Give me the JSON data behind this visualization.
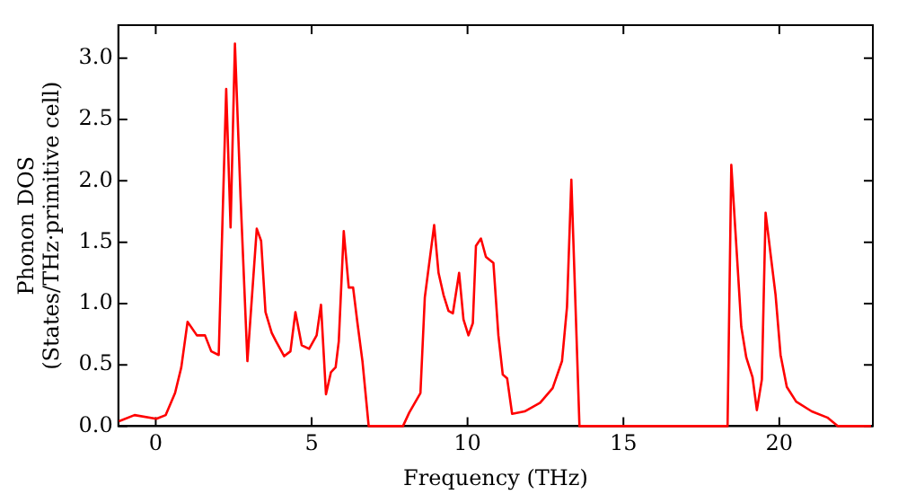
{
  "chart_data": {
    "type": "line",
    "xlabel": "Frequency (THz)",
    "ylabel": "Phonon DOS\n(States/THz·primitive cell)",
    "xlim": [
      -1.2,
      23
    ],
    "ylim": [
      0,
      3.27
    ],
    "xticks": [
      0,
      5,
      10,
      15,
      20
    ],
    "yticks": [
      {
        "value": 0,
        "label": "0.0"
      },
      {
        "value": 0.5,
        "label": "0.5"
      },
      {
        "value": 1,
        "label": "1.0"
      },
      {
        "value": 1.5,
        "label": "1.5"
      },
      {
        "value": 2,
        "label": "2.0"
      },
      {
        "value": 2.5,
        "label": "2.5"
      },
      {
        "value": 3,
        "label": "3.0"
      }
    ],
    "grid": false,
    "legend": false,
    "marker": "none",
    "line_style": "solid",
    "series": [
      {
        "color": "#ff0000",
        "x": [
          -1.18,
          -0.68,
          0.02,
          0.32,
          0.62,
          0.82,
          1.02,
          1.32,
          1.58,
          1.78,
          2.02,
          2.26,
          2.4,
          2.54,
          2.72,
          2.94,
          3.24,
          3.38,
          3.52,
          3.72,
          3.86,
          4.12,
          4.32,
          4.48,
          4.68,
          4.92,
          5.16,
          5.3,
          5.46,
          5.62,
          5.77,
          5.87,
          6.03,
          6.19,
          6.33,
          6.47,
          6.63,
          6.83,
          7.93,
          8.13,
          8.49,
          8.63,
          8.93,
          9.07,
          9.23,
          9.39,
          9.53,
          9.73,
          9.87,
          10.03,
          10.17,
          10.27,
          10.43,
          10.59,
          10.83,
          10.99,
          11.13,
          11.27,
          11.43,
          11.83,
          12.33,
          12.73,
          13.03,
          13.19,
          13.33,
          13.59,
          18.34,
          18.46,
          18.68,
          18.78,
          18.94,
          19.14,
          19.28,
          19.44,
          19.56,
          19.74,
          19.88,
          20.04,
          20.24,
          20.54,
          21.04,
          21.54,
          21.88,
          22.94
        ],
        "values": [
          0.04,
          0.09,
          0.06,
          0.09,
          0.27,
          0.48,
          0.85,
          0.74,
          0.74,
          0.61,
          0.58,
          2.75,
          1.62,
          3.12,
          1.87,
          0.53,
          1.61,
          1.51,
          0.93,
          0.76,
          0.69,
          0.57,
          0.61,
          0.93,
          0.66,
          0.63,
          0.74,
          0.99,
          0.26,
          0.44,
          0.48,
          0.69,
          1.59,
          1.13,
          1.13,
          0.84,
          0.53,
          0,
          0,
          0.11,
          0.27,
          1.05,
          1.64,
          1.25,
          1.07,
          0.94,
          0.92,
          1.25,
          0.87,
          0.74,
          0.84,
          1.47,
          1.53,
          1.38,
          1.33,
          0.74,
          0.42,
          0.39,
          0.1,
          0.12,
          0.19,
          0.31,
          0.53,
          0.97,
          2.01,
          0,
          0,
          2.13,
          1.23,
          0.81,
          0.56,
          0.4,
          0.13,
          0.38,
          1.74,
          1.36,
          1.07,
          0.58,
          0.32,
          0.2,
          0.12,
          0.07,
          0,
          0
        ]
      }
    ]
  }
}
